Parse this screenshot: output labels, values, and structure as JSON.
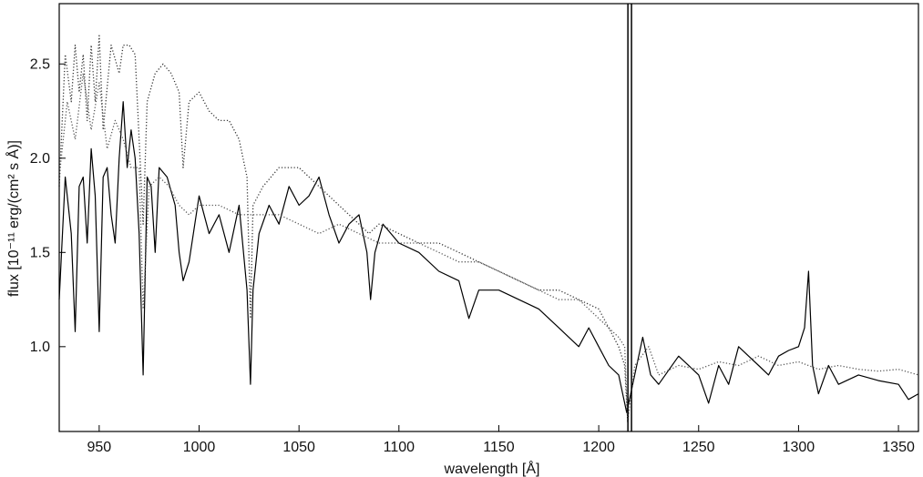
{
  "chart_data": {
    "type": "line",
    "title": "",
    "xlabel": "wavelength [Å]",
    "ylabel": "flux [10⁻¹¹ erg/(cm² s Å)]",
    "xlim": [
      930,
      1360
    ],
    "ylim": [
      0.55,
      2.82
    ],
    "xticks": [
      950,
      1000,
      1050,
      1100,
      1150,
      1200,
      1250,
      1300,
      1350
    ],
    "yticks": [
      1.0,
      1.5,
      2.0,
      2.5
    ],
    "ytick_labels": [
      "1.0",
      "1.5",
      "2.0",
      "2.5"
    ],
    "grid": false,
    "legend": "none",
    "vertical_markers": [
      1214.6,
      1216.4
    ],
    "series": [
      {
        "style": "solid",
        "color": "#000000",
        "x": [
          930,
          933,
          936,
          938,
          940,
          942,
          944,
          946,
          948,
          950,
          952,
          954,
          956,
          958,
          960,
          962,
          964,
          966,
          968,
          970,
          972,
          974,
          976,
          978,
          980,
          984,
          988,
          990,
          992,
          995,
          1000,
          1005,
          1010,
          1015,
          1020,
          1024,
          1025.7,
          1027,
          1030,
          1035,
          1040,
          1045,
          1050,
          1055,
          1060,
          1065,
          1070,
          1075,
          1080,
          1084,
          1085.8,
          1088,
          1092,
          1100,
          1110,
          1120,
          1130,
          1135,
          1140,
          1150,
          1160,
          1170,
          1180,
          1190,
          1195,
          1200,
          1205,
          1210,
          1212,
          1214,
          1218,
          1222,
          1226,
          1230,
          1240,
          1250,
          1255,
          1260,
          1265,
          1270,
          1275,
          1280,
          1285,
          1290,
          1295,
          1300,
          1303,
          1305,
          1307,
          1310,
          1315,
          1320,
          1330,
          1340,
          1350,
          1355,
          1360
        ],
        "y": [
          1.25,
          1.9,
          1.6,
          1.08,
          1.85,
          1.9,
          1.55,
          2.05,
          1.8,
          1.08,
          1.9,
          1.95,
          1.7,
          1.55,
          2.0,
          2.3,
          1.95,
          2.15,
          2.0,
          1.6,
          0.85,
          1.9,
          1.85,
          1.5,
          1.95,
          1.9,
          1.75,
          1.5,
          1.35,
          1.45,
          1.8,
          1.6,
          1.7,
          1.5,
          1.75,
          1.3,
          0.8,
          1.3,
          1.6,
          1.75,
          1.65,
          1.85,
          1.75,
          1.8,
          1.9,
          1.7,
          1.55,
          1.65,
          1.7,
          1.5,
          1.25,
          1.5,
          1.65,
          1.55,
          1.5,
          1.4,
          1.35,
          1.15,
          1.3,
          1.3,
          1.25,
          1.2,
          1.1,
          1.0,
          1.1,
          1.0,
          0.9,
          0.85,
          0.75,
          0.65,
          0.85,
          1.05,
          0.85,
          0.8,
          0.95,
          0.85,
          0.7,
          0.9,
          0.8,
          1.0,
          0.95,
          0.9,
          0.85,
          0.95,
          0.98,
          1.0,
          1.1,
          1.4,
          0.9,
          0.75,
          0.9,
          0.8,
          0.85,
          0.82,
          0.8,
          0.72,
          0.75
        ]
      },
      {
        "style": "dotted",
        "color": "#333333",
        "x": [
          930,
          933,
          936,
          938,
          940,
          942,
          944,
          946,
          948,
          950,
          952,
          956,
          960,
          962,
          965,
          968,
          972,
          974,
          978,
          982,
          986,
          990,
          992,
          995,
          1000,
          1005,
          1010,
          1015,
          1020,
          1024,
          1025.7,
          1027,
          1032,
          1040,
          1050,
          1060,
          1070,
          1080,
          1085,
          1090,
          1100,
          1110,
          1120,
          1130,
          1140,
          1150,
          1160,
          1170,
          1180,
          1190,
          1200,
          1205,
          1210,
          1213,
          1214.5
        ],
        "y": [
          1.85,
          2.55,
          2.3,
          2.6,
          2.35,
          2.55,
          2.2,
          2.6,
          2.3,
          2.65,
          2.15,
          2.6,
          2.45,
          2.6,
          2.6,
          2.55,
          1.65,
          2.3,
          2.45,
          2.5,
          2.45,
          2.35,
          1.95,
          2.3,
          2.35,
          2.25,
          2.2,
          2.2,
          2.1,
          1.9,
          1.15,
          1.75,
          1.85,
          1.95,
          1.95,
          1.85,
          1.75,
          1.65,
          1.6,
          1.65,
          1.6,
          1.55,
          1.55,
          1.5,
          1.45,
          1.4,
          1.35,
          1.3,
          1.3,
          1.25,
          1.2,
          1.1,
          1.0,
          0.9,
          0.6
        ]
      },
      {
        "style": "dotted",
        "color": "#555555",
        "x": [
          930,
          934,
          938,
          942,
          946,
          950,
          954,
          958,
          962,
          966,
          970,
          972,
          975,
          980,
          985,
          990,
          995,
          1000,
          1010,
          1020,
          1030,
          1040,
          1050,
          1060,
          1070,
          1080,
          1090,
          1100,
          1110,
          1120,
          1130,
          1140,
          1150,
          1160,
          1170,
          1180,
          1190,
          1200,
          1210,
          1213,
          1214.5,
          1218,
          1225,
          1230,
          1240,
          1250,
          1260,
          1270,
          1280,
          1290,
          1300,
          1310,
          1320,
          1330,
          1340,
          1350,
          1360
        ],
        "y": [
          1.9,
          2.3,
          2.1,
          2.45,
          2.15,
          2.4,
          2.05,
          2.2,
          2.1,
          1.95,
          1.95,
          1.2,
          1.85,
          1.9,
          1.85,
          1.75,
          1.7,
          1.75,
          1.75,
          1.7,
          1.7,
          1.7,
          1.65,
          1.6,
          1.65,
          1.6,
          1.55,
          1.55,
          1.55,
          1.5,
          1.45,
          1.45,
          1.4,
          1.35,
          1.3,
          1.25,
          1.25,
          1.15,
          1.05,
          1.0,
          0.6,
          0.9,
          1.0,
          0.85,
          0.9,
          0.88,
          0.92,
          0.9,
          0.95,
          0.9,
          0.92,
          0.88,
          0.9,
          0.88,
          0.87,
          0.88,
          0.85
        ]
      }
    ]
  }
}
